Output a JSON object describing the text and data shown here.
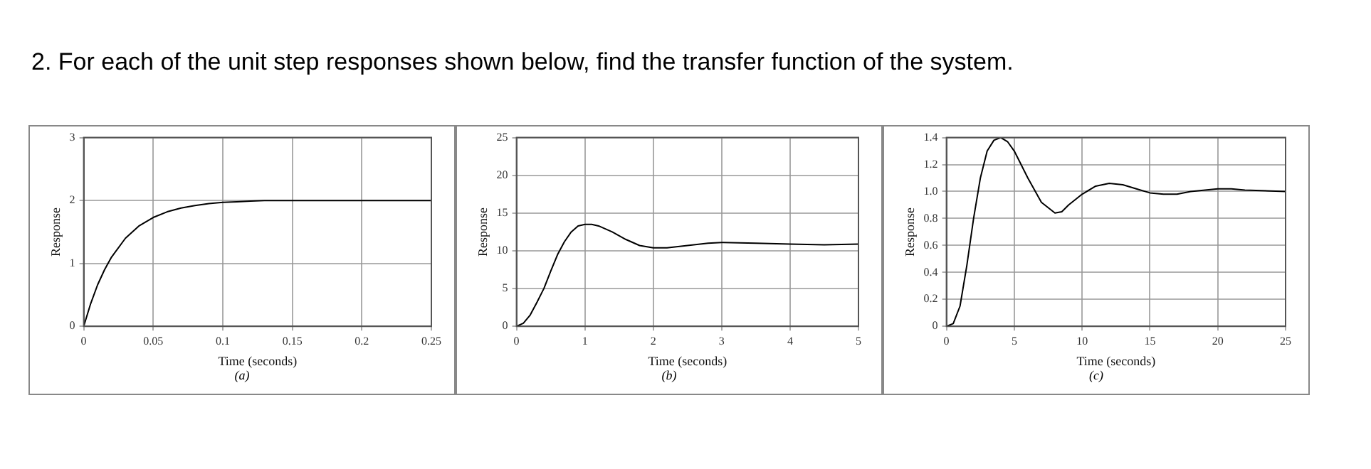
{
  "chart_data": [
    {
      "type": "line",
      "title": "2. For each of the unit step responses shown below, find the transfer function of the system.",
      "xlabel": "Time (seconds)",
      "ylabel": "Response",
      "annotations": [
        "(a)"
      ],
      "grid": true,
      "xlim": [
        0,
        0.25
      ],
      "xticks": [
        0,
        0.05,
        0.1,
        0.15,
        0.2,
        0.25
      ],
      "ylim": [
        0,
        3
      ],
      "yticks": [
        0,
        1,
        2,
        3
      ],
      "series": [
        {
          "color": "#000000",
          "x": [
            0,
            0.005,
            0.01,
            0.015,
            0.02,
            0.03,
            0.04,
            0.05,
            0.06,
            0.07,
            0.08,
            0.09,
            0.1,
            0.11,
            0.12,
            0.13,
            0.25
          ],
          "values": [
            0,
            0.36,
            0.66,
            0.9,
            1.1,
            1.4,
            1.6,
            1.73,
            1.82,
            1.88,
            1.92,
            1.95,
            1.97,
            1.98,
            1.99,
            2,
            2
          ]
        }
      ]
    },
    {
      "type": "line",
      "xlabel": "Time (seconds)",
      "ylabel": "Response",
      "annotations": [
        "(b)"
      ],
      "grid": true,
      "xlim": [
        0,
        5
      ],
      "xticks": [
        0,
        1,
        2,
        3,
        4,
        5
      ],
      "ylim": [
        0,
        25
      ],
      "yticks": [
        0,
        5,
        10,
        15,
        20,
        25
      ],
      "series": [
        {
          "color": "#000000",
          "x": [
            0,
            0.1,
            0.2,
            0.3,
            0.4,
            0.5,
            0.6,
            0.7,
            0.8,
            0.9,
            1,
            1.1,
            1.2,
            1.4,
            1.6,
            1.8,
            2,
            2.2,
            2.5,
            2.8,
            3,
            3.5,
            4,
            4.5,
            5
          ],
          "values": [
            0,
            0.4,
            1.5,
            3.2,
            5,
            7.3,
            9.5,
            11.2,
            12.5,
            13.3,
            13.5,
            13.5,
            13.3,
            12.5,
            11.5,
            10.7,
            10.4,
            10.4,
            10.7,
            11,
            11.1,
            11,
            10.9,
            10.8,
            10.9
          ]
        }
      ]
    },
    {
      "type": "line",
      "xlabel": "Time (seconds)",
      "ylabel": "Response",
      "annotations": [
        "(c)"
      ],
      "grid": true,
      "xlim": [
        0,
        25
      ],
      "xticks": [
        0,
        5,
        10,
        15,
        20,
        25
      ],
      "ylim": [
        0,
        1.4
      ],
      "yticks": [
        0,
        0.2,
        0.4,
        0.6,
        0.8,
        {
          "value": 1,
          "label": "1.0"
        },
        1.2,
        1.4
      ],
      "series": [
        {
          "color": "#000000",
          "x": [
            0,
            0.5,
            1,
            1.5,
            2,
            2.5,
            3,
            3.5,
            4,
            4.5,
            5,
            6,
            7,
            8,
            8.5,
            9,
            10,
            11,
            12,
            13,
            14,
            15,
            16,
            17,
            18,
            20,
            21,
            22,
            25
          ],
          "values": [
            0,
            0.02,
            0.15,
            0.45,
            0.8,
            1.1,
            1.3,
            1.38,
            1.4,
            1.37,
            1.3,
            1.1,
            0.92,
            0.84,
            0.85,
            0.9,
            0.98,
            1.04,
            1.06,
            1.05,
            1.02,
            0.99,
            0.98,
            0.98,
            1,
            1.02,
            1.02,
            1.01,
            1
          ]
        }
      ]
    }
  ]
}
